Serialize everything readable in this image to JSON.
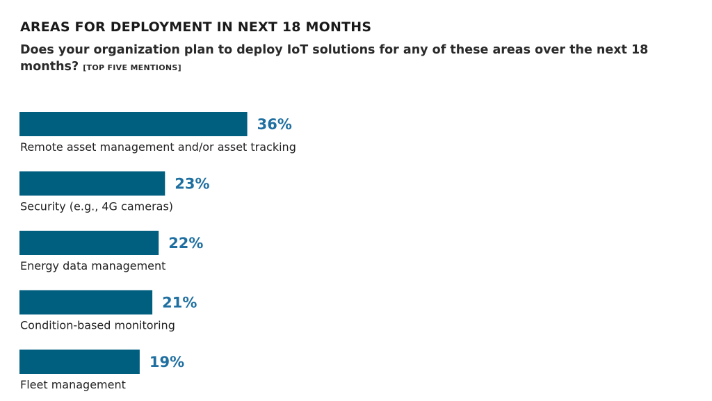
{
  "colors": {
    "bar": "#005e7f",
    "value_text": "#1f6fa0"
  },
  "chart_data": {
    "type": "bar",
    "orientation": "horizontal",
    "title": "AREAS FOR DEPLOYMENT IN NEXT 18 MONTHS",
    "subtitle": "Does your organization plan to deploy IoT solutions for any of these areas over the next 18 months?",
    "note": "[TOP FIVE MENTIONS]",
    "categories": [
      "Remote asset management and/or asset tracking",
      "Security (e.g., 4G cameras)",
      "Energy data management",
      "Condition-based monitoring",
      "Fleet management"
    ],
    "values": [
      36,
      23,
      22,
      21,
      19
    ],
    "value_labels": [
      "36%",
      "23%",
      "22%",
      "21%",
      "19%"
    ],
    "unit": "%",
    "grid": false,
    "legend": "none"
  }
}
